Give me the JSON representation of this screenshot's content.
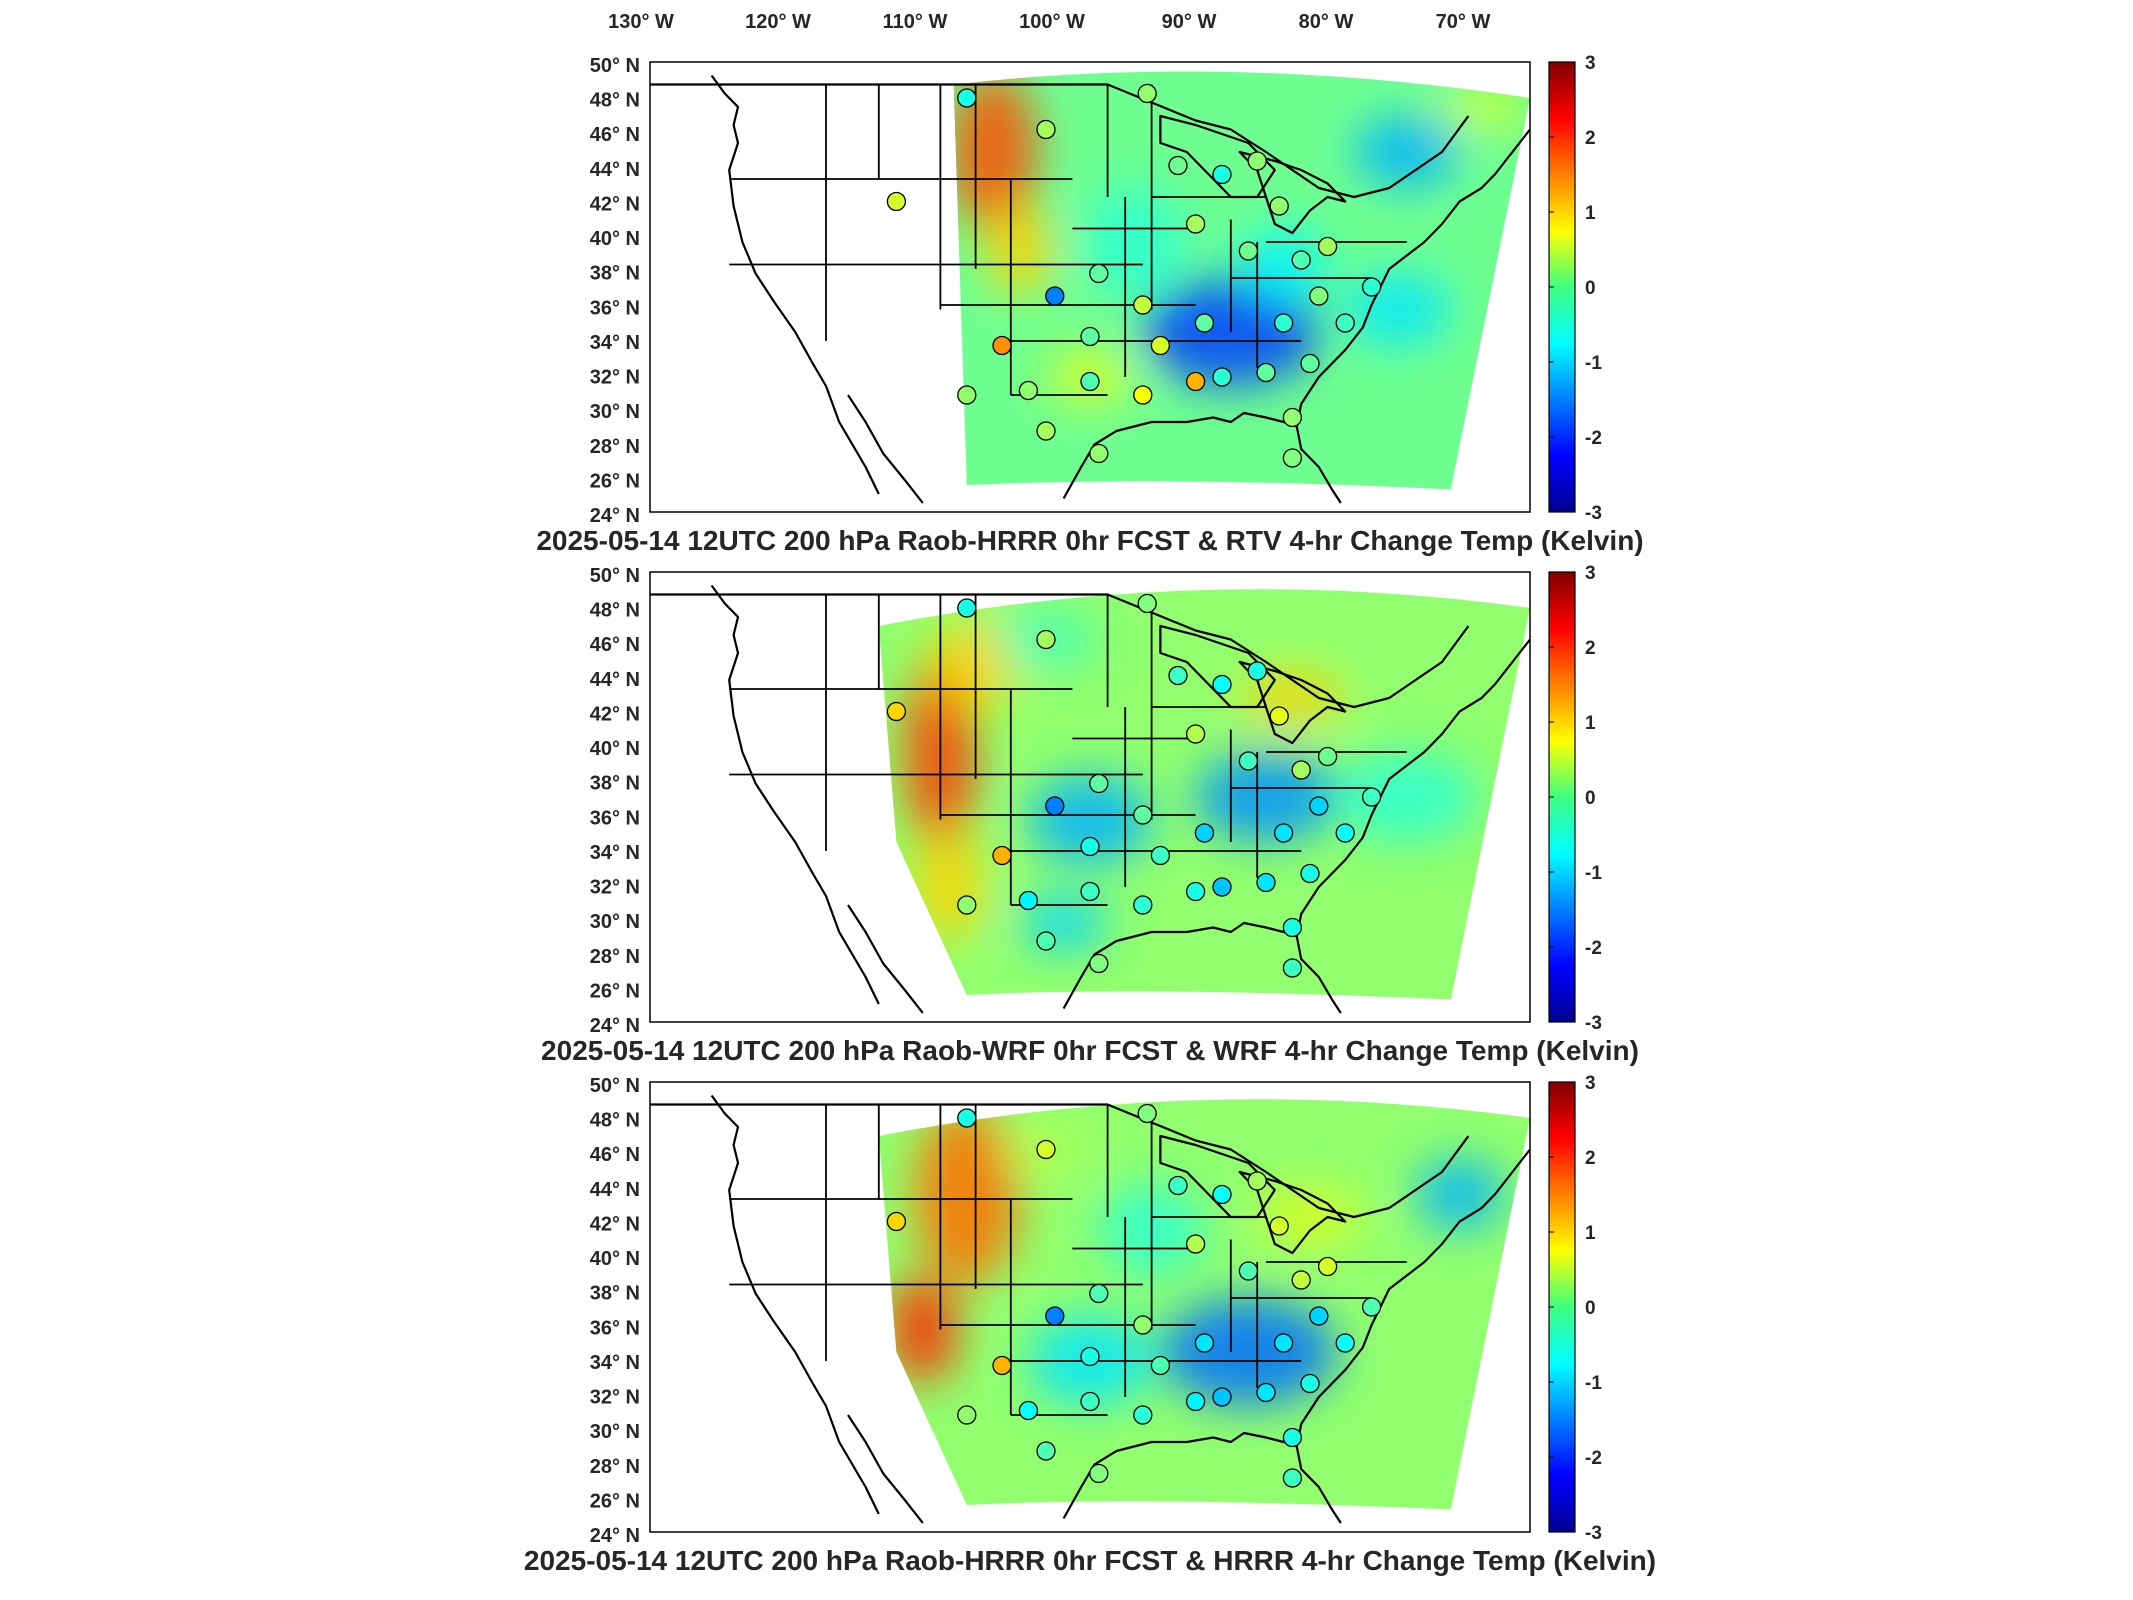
{
  "figure": {
    "lon_labels": [
      "130° W",
      "120° W",
      "110° W",
      "100° W",
      "90° W",
      "80° W",
      "70° W"
    ],
    "lat_labels": [
      "50° N",
      "48° N",
      "46° N",
      "44° N",
      "42° N",
      "40° N",
      "38° N",
      "36° N",
      "34° N",
      "32° N",
      "30° N",
      "28° N",
      "26° N",
      "24° N"
    ],
    "colorbar_ticks": [
      "3",
      "2",
      "1",
      "0",
      "-1",
      "-2",
      "-3"
    ],
    "colorbar_range": [
      -3,
      3
    ],
    "colormap": "jet",
    "panels": [
      {
        "title": "2025-05-14 12UTC 200 hPa Raob-HRRR 0hr FCST & RTV 4-hr Change Temp (Kelvin)"
      },
      {
        "title": "2025-05-14 12UTC 200 hPa Raob-WRF 0hr FCST & WRF 4-hr Change Temp (Kelvin)"
      },
      {
        "title": "2025-05-14 12UTC 200 hPa Raob-HRRR 0hr FCST & HRRR 4-hr Change Temp (Kelvin)"
      }
    ]
  }
}
